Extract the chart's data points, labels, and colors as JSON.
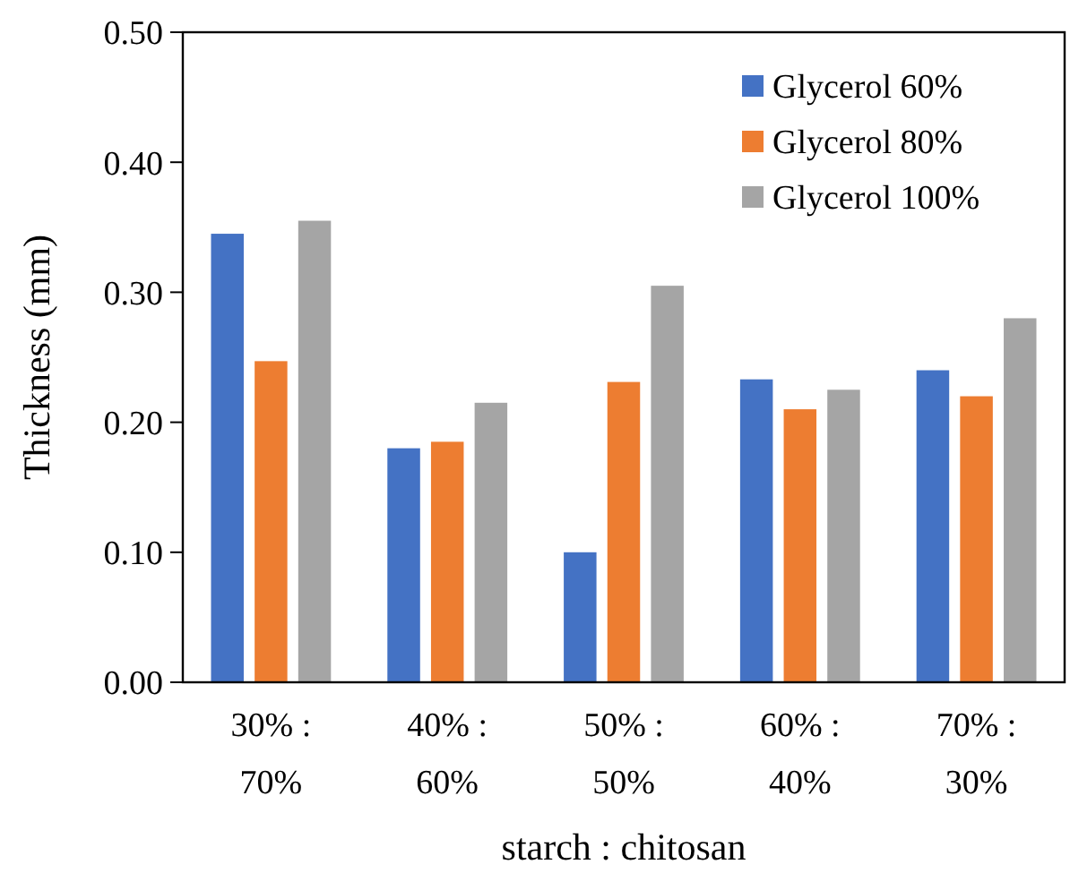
{
  "chart_data": {
    "type": "bar",
    "xlabel": "starch : chitosan",
    "ylabel": "Thickness (mm)",
    "categories": [
      "30% : 70%",
      "40% : 60%",
      "50% : 50%",
      "60% : 40%",
      "70% : 30%"
    ],
    "series": [
      {
        "name": "Glycerol 60%",
        "color": "#4472c4",
        "values": [
          0.345,
          0.18,
          0.1,
          0.233,
          0.24
        ]
      },
      {
        "name": "Glycerol 80%",
        "color": "#ed7d31",
        "values": [
          0.247,
          0.185,
          0.231,
          0.21,
          0.22
        ]
      },
      {
        "name": "Glycerol 100%",
        "color": "#a5a5a5",
        "values": [
          0.355,
          0.215,
          0.305,
          0.225,
          0.28
        ]
      }
    ],
    "ylim": [
      0,
      0.5
    ],
    "yticks": [
      {
        "value": 0,
        "label": "0.00"
      },
      {
        "value": 0.1,
        "label": "0.10"
      },
      {
        "value": 0.2,
        "label": "0.20"
      },
      {
        "value": 0.3,
        "label": "0.30"
      },
      {
        "value": 0.4,
        "label": "0.40"
      },
      {
        "value": 0.5,
        "label": "0.50"
      }
    ],
    "grid": false,
    "legend": "top right"
  }
}
